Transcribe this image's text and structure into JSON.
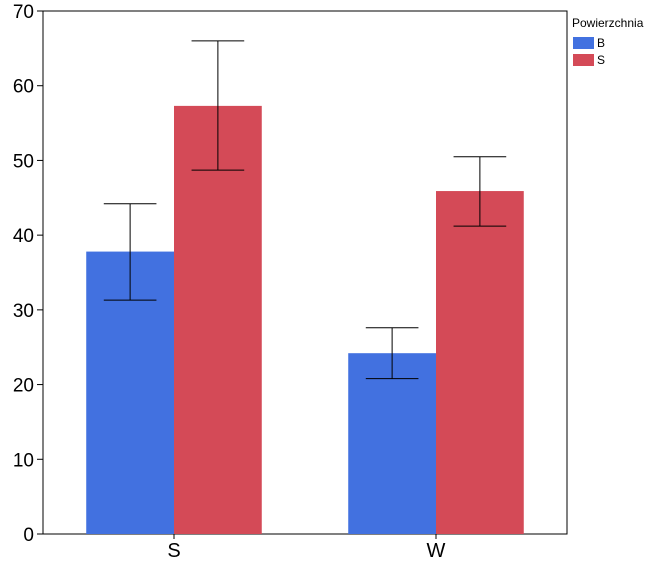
{
  "chart_data": {
    "type": "bar",
    "title": "",
    "xlabel": "",
    "ylabel": "",
    "categories": [
      "S",
      "W"
    ],
    "ylim": [
      0,
      70
    ],
    "yticks": [
      0,
      10,
      20,
      30,
      40,
      50,
      60,
      70
    ],
    "grid": false,
    "legend_placement": "top-right outside",
    "legend_title": "Powierzchnia",
    "series": [
      {
        "name": "B",
        "color": "#4271E0",
        "values": [
          37.8,
          24.2
        ],
        "error_low": [
          31.3,
          20.8
        ],
        "error_high": [
          44.2,
          27.6
        ]
      },
      {
        "name": "S",
        "color": "#D44A57",
        "values": [
          57.3,
          45.9
        ],
        "error_low": [
          48.7,
          41.2
        ],
        "error_high": [
          66.0,
          50.5
        ]
      }
    ]
  }
}
